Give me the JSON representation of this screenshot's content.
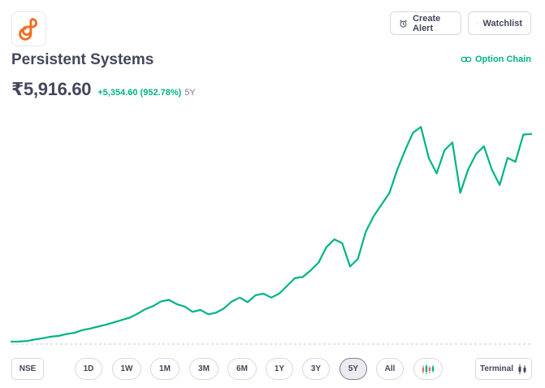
{
  "header": {
    "company_name": "Persistent Systems",
    "create_alert_label": "Create Alert",
    "watchlist_label": "Watchlist",
    "option_chain_label": "Option Chain"
  },
  "quote": {
    "price": "₹5,916.60",
    "change": "+5,354.60 (952.78%)",
    "period": "5Y"
  },
  "colors": {
    "accent": "#00b386",
    "logo_orange": "#f26b22",
    "text": "#44475b"
  },
  "exchange_label": "NSE",
  "ranges": [
    "1D",
    "1W",
    "1M",
    "3M",
    "6M",
    "1Y",
    "3Y",
    "5Y",
    "All"
  ],
  "selected_range": "5Y",
  "terminal_label": "Terminal",
  "chart_data": {
    "type": "line",
    "title": "",
    "series": [
      {
        "values": [
          562,
          565,
          580,
          620,
          650,
          690,
          710,
          760,
          790,
          860,
          900,
          950,
          1000,
          1060,
          1120,
          1180,
          1280,
          1400,
          1480,
          1600,
          1640,
          1530,
          1470,
          1330,
          1380,
          1270,
          1310,
          1420,
          1600,
          1700,
          1580,
          1760,
          1800,
          1700,
          1800,
          2000,
          2200,
          2230,
          2400,
          2600,
          3000,
          3200,
          3100,
          2500,
          2700,
          3400,
          3800,
          4100,
          4400,
          5000,
          5500,
          5950,
          6100,
          5300,
          4900,
          5500,
          5700,
          4400,
          5000,
          5400,
          5600,
          5000,
          4600,
          5300,
          5200,
          5900,
          5916.6
        ]
      }
    ],
    "baseline": 562,
    "grid": false,
    "legend": "none"
  }
}
